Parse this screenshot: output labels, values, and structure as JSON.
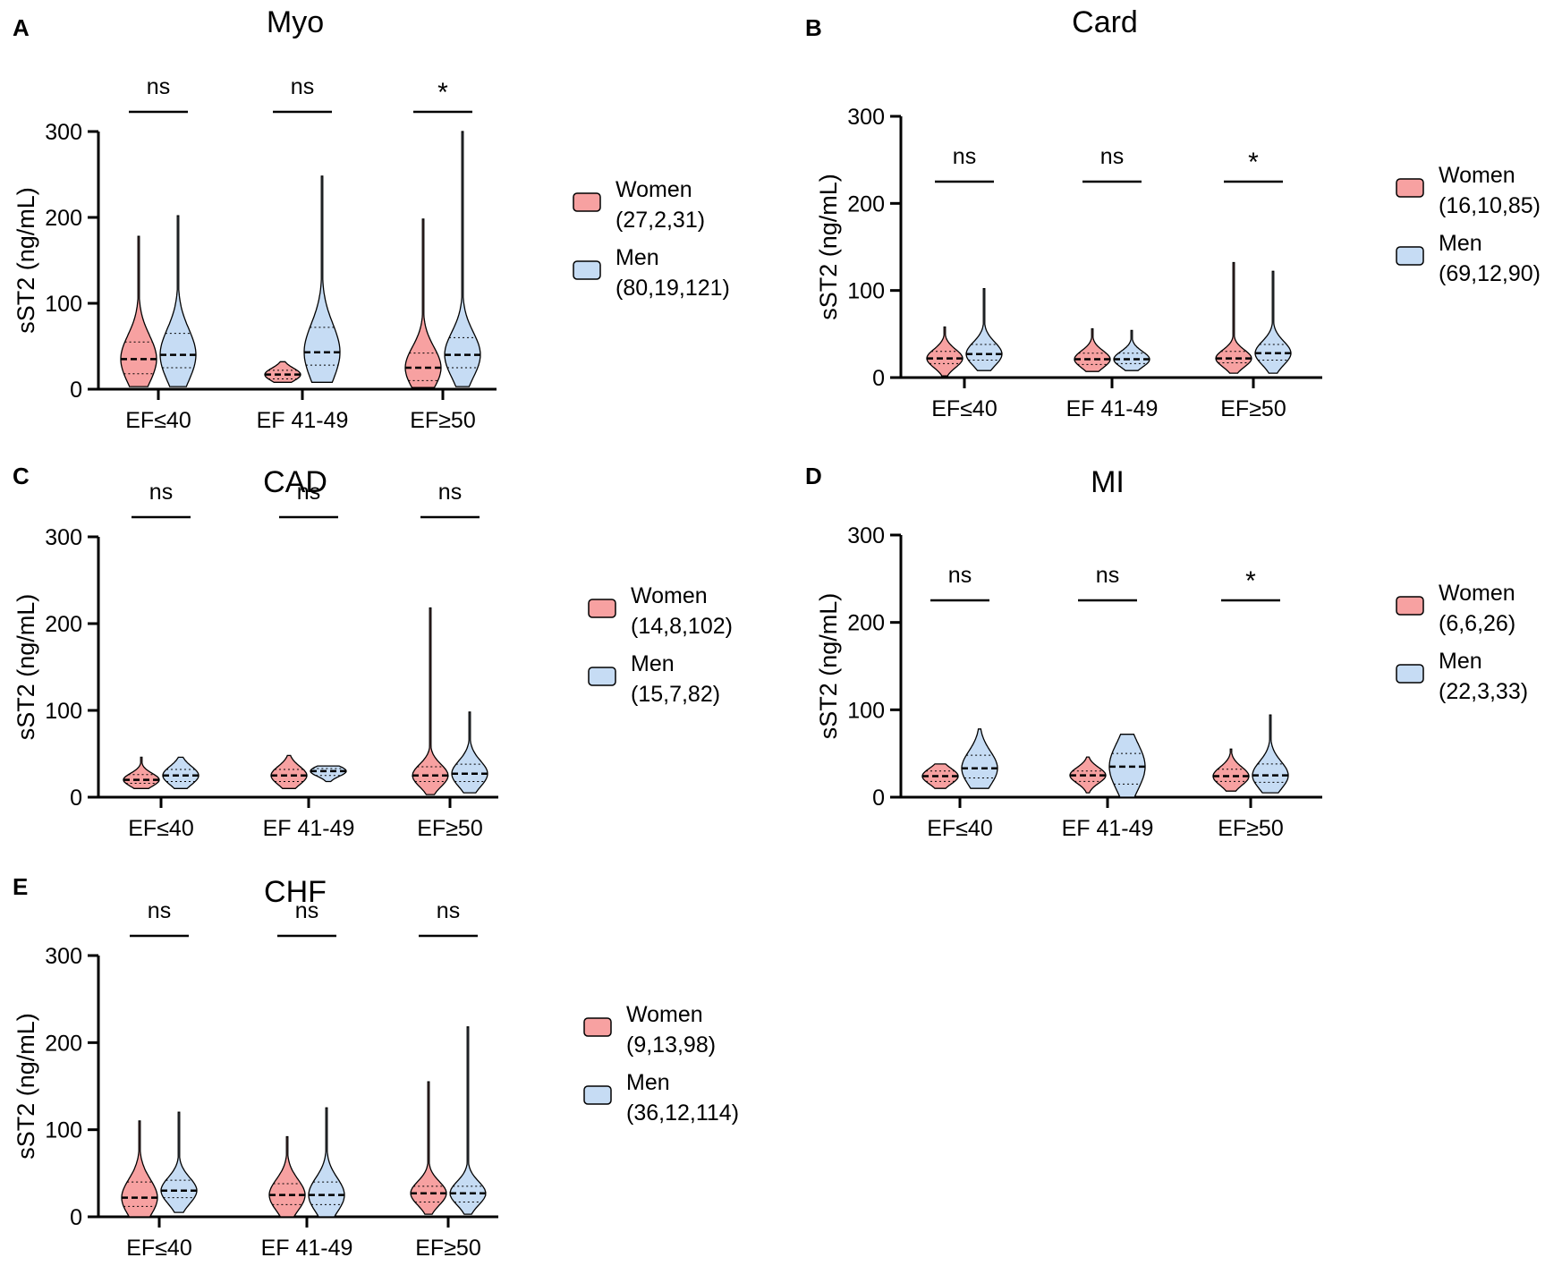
{
  "colors": {
    "women_fill": "#f7a1a1",
    "men_fill": "#c6dcf4",
    "outline": "#000000"
  },
  "axis_label": "sST2 (ng/mL)",
  "chart_data": [
    {
      "type": "violin",
      "panel_letter": "A",
      "title": "Myo",
      "ylabel": "sST2 (ng/mL)",
      "ylim": [
        0,
        300
      ],
      "yticks": [
        "0",
        "100",
        "200",
        "300"
      ],
      "categories": [
        "EF≤40",
        "EF 41-49",
        "EF≥50"
      ],
      "significance": [
        "ns",
        "ns",
        "*"
      ],
      "legend": [
        {
          "name": "Women",
          "n": "(27,2,31)"
        },
        {
          "name": "Men",
          "n": "(80,19,121)"
        }
      ],
      "series": [
        {
          "name": "Women",
          "median": [
            35,
            17,
            25
          ],
          "q1": [
            18,
            12,
            10
          ],
          "q3": [
            55,
            22,
            42
          ],
          "min": [
            3,
            8,
            2
          ],
          "max": [
            178,
            32,
            198
          ]
        },
        {
          "name": "Men",
          "median": [
            40,
            43,
            40
          ],
          "q1": [
            25,
            28,
            25
          ],
          "q3": [
            65,
            72,
            60
          ],
          "min": [
            3,
            8,
            3
          ],
          "max": [
            202,
            248,
            300
          ]
        }
      ]
    },
    {
      "type": "violin",
      "panel_letter": "B",
      "title": "Card",
      "ylabel": "sST2 (ng/mL)",
      "ylim": [
        0,
        300
      ],
      "yticks": [
        "0",
        "100",
        "200",
        "300"
      ],
      "categories": [
        "EF≤40",
        "EF 41-49",
        "EF≥50"
      ],
      "significance": [
        "ns",
        "ns",
        "*"
      ],
      "legend": [
        {
          "name": "Women",
          "n": "(16,10,85)"
        },
        {
          "name": "Men",
          "n": "(69,12,90)"
        }
      ],
      "series": [
        {
          "name": "Women",
          "median": [
            22,
            21,
            22
          ],
          "q1": [
            16,
            15,
            17
          ],
          "q3": [
            30,
            28,
            30
          ],
          "min": [
            2,
            7,
            5
          ],
          "max": [
            58,
            56,
            132
          ]
        },
        {
          "name": "Men",
          "median": [
            27,
            21,
            28
          ],
          "q1": [
            20,
            16,
            20
          ],
          "q3": [
            38,
            28,
            38
          ],
          "min": [
            8,
            8,
            5
          ],
          "max": [
            102,
            54,
            122
          ]
        }
      ]
    },
    {
      "type": "violin",
      "panel_letter": "C",
      "title": "CAD",
      "ylabel": "sST2 (ng/mL)",
      "ylim": [
        0,
        300
      ],
      "yticks": [
        "0",
        "100",
        "200",
        "300"
      ],
      "categories": [
        "EF≤40",
        "EF 41-49",
        "EF≥50"
      ],
      "significance": [
        "ns",
        "ns",
        "ns"
      ],
      "legend": [
        {
          "name": "Women",
          "n": "(14,8,102)"
        },
        {
          "name": "Men",
          "n": "(15,7,82)"
        }
      ],
      "series": [
        {
          "name": "Women",
          "median": [
            20,
            25,
            25
          ],
          "q1": [
            16,
            18,
            18
          ],
          "q3": [
            26,
            32,
            35
          ],
          "min": [
            10,
            10,
            3
          ],
          "max": [
            46,
            48,
            218
          ]
        },
        {
          "name": "Men",
          "median": [
            25,
            30,
            27
          ],
          "q1": [
            18,
            25,
            18
          ],
          "q3": [
            32,
            33,
            38
          ],
          "min": [
            10,
            18,
            5
          ],
          "max": [
            46,
            36,
            98
          ]
        }
      ]
    },
    {
      "type": "violin",
      "panel_letter": "D",
      "title": "MI",
      "ylabel": "sST2 (ng/mL)",
      "ylim": [
        0,
        300
      ],
      "yticks": [
        "0",
        "100",
        "200",
        "300"
      ],
      "categories": [
        "EF≤40",
        "EF 41-49",
        "EF≥50"
      ],
      "significance": [
        "ns",
        "ns",
        "*"
      ],
      "legend": [
        {
          "name": "Women",
          "n": "(6,6,26)"
        },
        {
          "name": "Men",
          "n": "(22,3,33)"
        }
      ],
      "series": [
        {
          "name": "Women",
          "median": [
            24,
            25,
            24
          ],
          "q1": [
            18,
            18,
            18
          ],
          "q3": [
            30,
            30,
            32
          ],
          "min": [
            10,
            5,
            7
          ],
          "max": [
            38,
            46,
            55
          ]
        },
        {
          "name": "Men",
          "median": [
            33,
            35,
            25
          ],
          "q1": [
            22,
            15,
            17
          ],
          "q3": [
            48,
            50,
            38
          ],
          "min": [
            10,
            0,
            5
          ],
          "max": [
            78,
            72,
            94
          ]
        }
      ]
    },
    {
      "type": "violin",
      "panel_letter": "E",
      "title": "CHF",
      "ylabel": "sST2 (ng/mL)",
      "ylim": [
        0,
        300
      ],
      "yticks": [
        "0",
        "100",
        "200",
        "300"
      ],
      "categories": [
        "EF≤40",
        "EF 41-49",
        "EF≥50"
      ],
      "significance": [
        "ns",
        "ns",
        "ns"
      ],
      "legend": [
        {
          "name": "Women",
          "n": "(9,13,98)"
        },
        {
          "name": "Men",
          "n": "(36,12,114)"
        }
      ],
      "series": [
        {
          "name": "Women",
          "median": [
            22,
            25,
            27
          ],
          "q1": [
            12,
            14,
            17
          ],
          "q3": [
            40,
            38,
            35
          ],
          "min": [
            0,
            0,
            3
          ],
          "max": [
            110,
            92,
            155
          ]
        },
        {
          "name": "Men",
          "median": [
            30,
            25,
            27
          ],
          "q1": [
            22,
            14,
            17
          ],
          "q3": [
            42,
            40,
            35
          ],
          "min": [
            5,
            0,
            3
          ],
          "max": [
            120,
            125,
            218
          ]
        }
      ]
    }
  ]
}
